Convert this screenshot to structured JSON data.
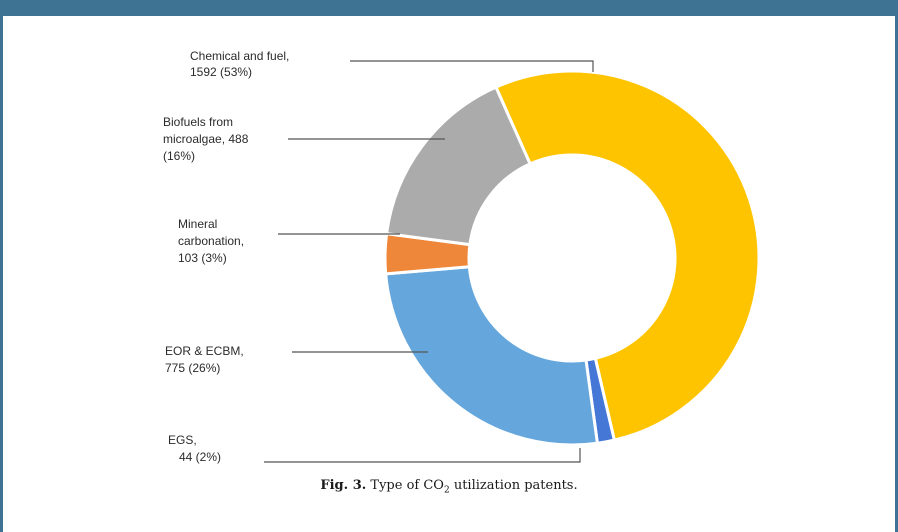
{
  "chart_data": {
    "type": "pie",
    "donut": true,
    "slices": [
      {
        "label": "Chemical and fuel",
        "value": 1592,
        "percent": 53,
        "color": "#ffc400"
      },
      {
        "label": "EGS",
        "value": 44,
        "percent": 2,
        "color": "#4577d6"
      },
      {
        "label": "EOR & ECBM",
        "value": 775,
        "percent": 26,
        "color": "#65a7dc"
      },
      {
        "label": "Mineral carbonation",
        "value": 103,
        "percent": 3,
        "color": "#ef873a"
      },
      {
        "label": "Biofuels from microalgae",
        "value": 488,
        "percent": 16,
        "color": "#ababab"
      }
    ],
    "annotations": {
      "chemical": [
        "Chemical and fuel,",
        "1592 (53%)"
      ],
      "biofuels": [
        "Biofuels from",
        "microalgae, 488",
        "(16%)"
      ],
      "mineral": [
        "Mineral",
        "carbonation,",
        "103 (3%)"
      ],
      "eor": [
        "EOR & ECBM,",
        "775 (26%)"
      ],
      "egs": [
        "EGS,",
        "44 (2%)"
      ]
    }
  },
  "caption": {
    "prefix": "Fig. 3.",
    "text_before": " Type of CO",
    "subscript": "2",
    "text_after": " utilization patents."
  }
}
